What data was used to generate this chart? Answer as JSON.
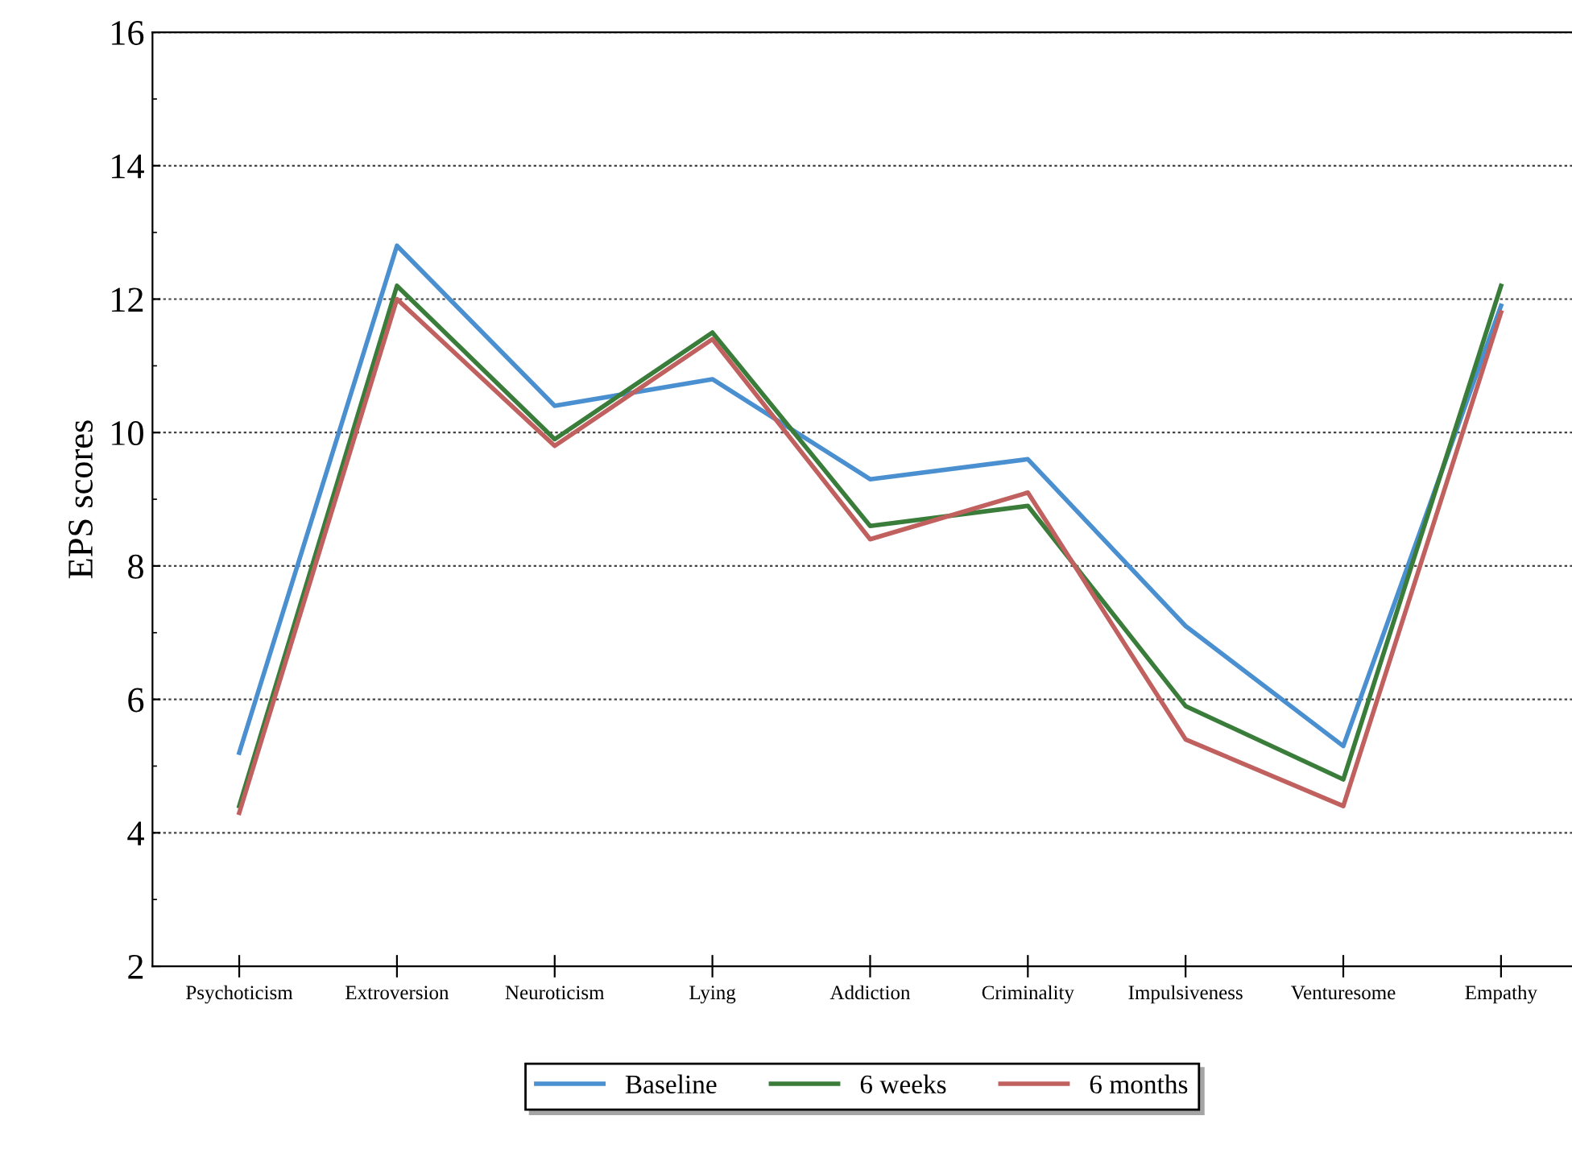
{
  "chart_data": {
    "type": "line",
    "ylabel": "EPS scores",
    "categories": [
      "Psychoticism",
      "Extroversion",
      "Neuroticism",
      "Lying",
      "Addiction",
      "Criminality",
      "Impulsiveness",
      "Venturesome",
      "Empathy"
    ],
    "series": [
      {
        "name": "Baseline",
        "color": "#4a90d0",
        "values": [
          5.2,
          12.8,
          10.4,
          10.8,
          9.3,
          9.6,
          7.1,
          5.3,
          11.9
        ]
      },
      {
        "name": "6 weeks",
        "color": "#3a7d3a",
        "values": [
          4.4,
          12.2,
          9.9,
          11.5,
          8.6,
          8.9,
          5.9,
          4.8,
          12.2
        ]
      },
      {
        "name": "6 months",
        "color": "#c0605f",
        "values": [
          4.3,
          12.0,
          9.8,
          11.4,
          8.4,
          9.1,
          5.4,
          4.4,
          11.8
        ]
      }
    ],
    "ylim": [
      2,
      16
    ],
    "yticks": [
      2,
      4,
      6,
      8,
      10,
      12,
      14,
      16
    ],
    "grid": "y",
    "legend": "bottom",
    "marker": "none",
    "line_style": "solid"
  }
}
